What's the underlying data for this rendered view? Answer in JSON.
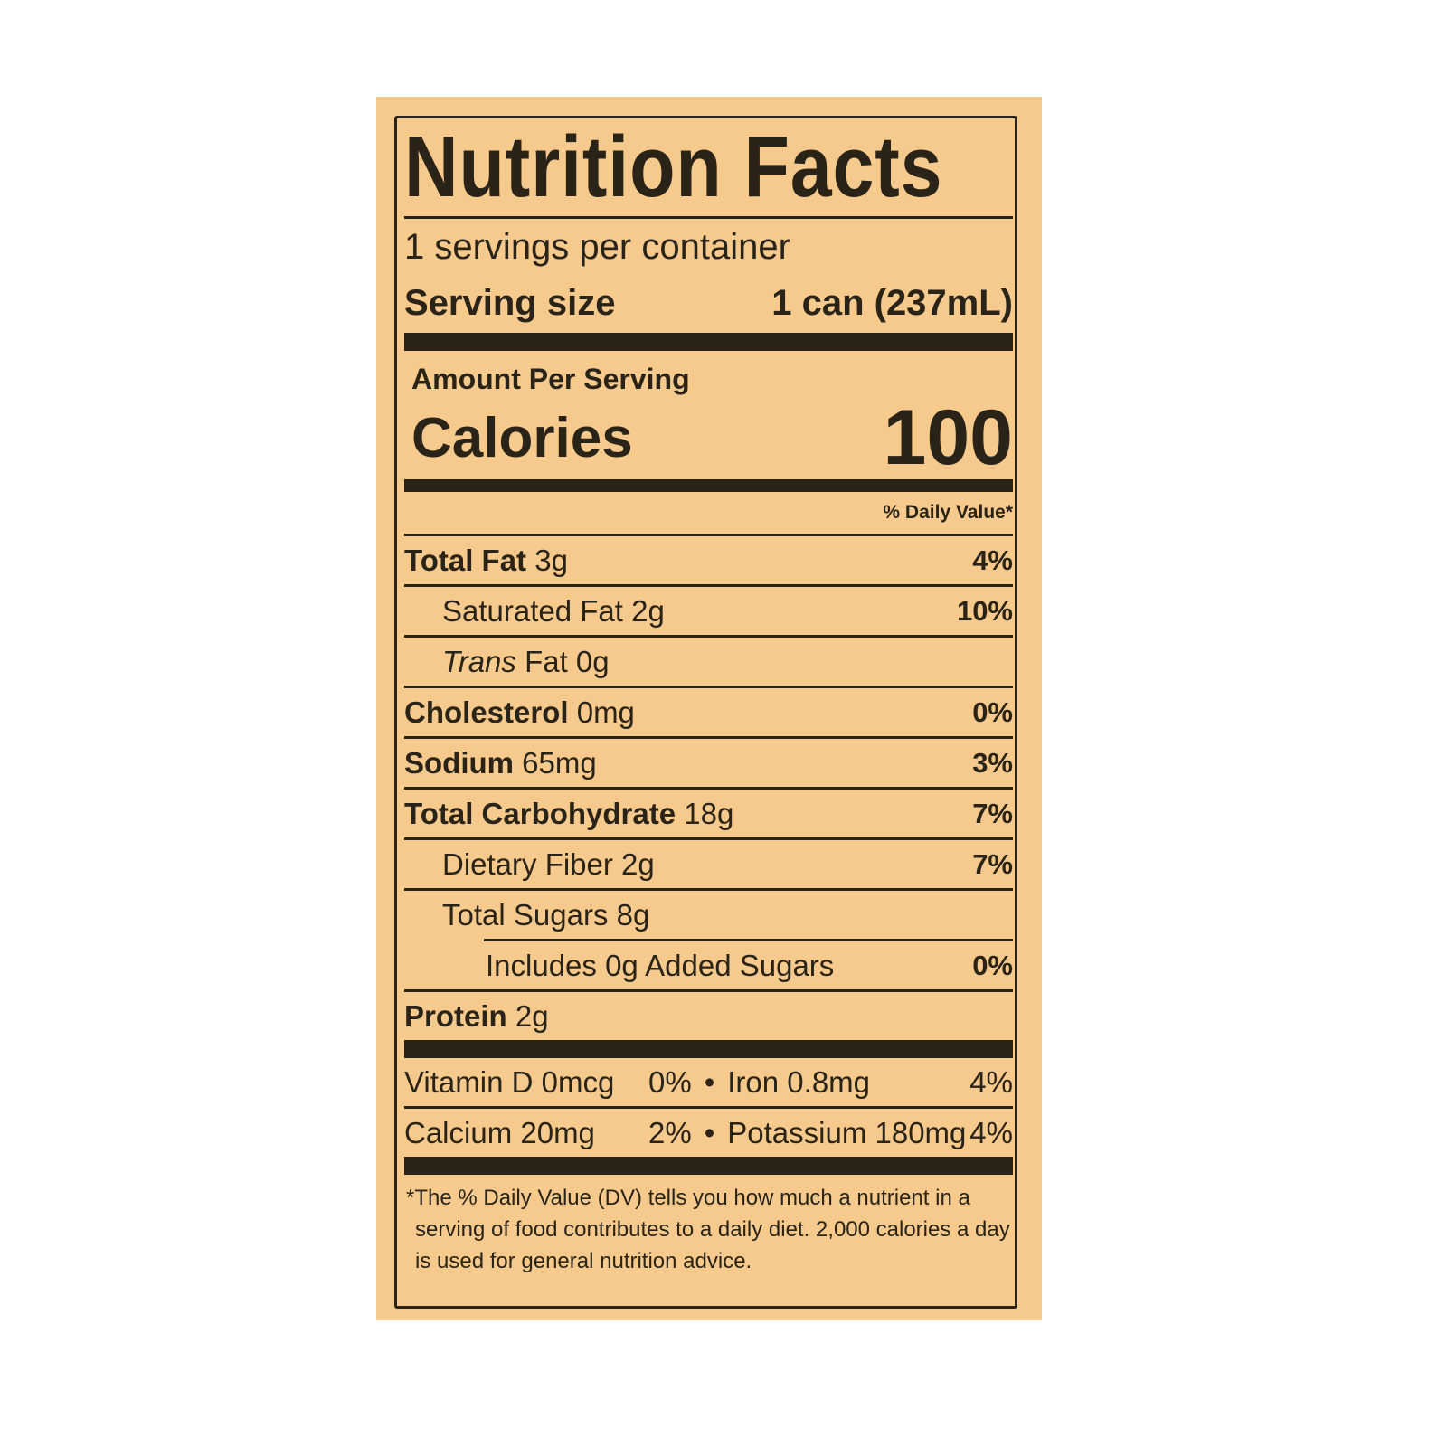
{
  "title": "Nutrition Facts",
  "servings_per_container": "1 servings per container",
  "serving_size": {
    "label": "Serving size",
    "value": "1 can (237mL)"
  },
  "amount_per_serving": "Amount Per Serving",
  "calories": {
    "label": "Calories",
    "value": "100"
  },
  "daily_value_header": "% Daily Value*",
  "nutrients": [
    {
      "name": "Total Fat",
      "amount": "3g",
      "dv": "4%"
    },
    {
      "name": "Saturated Fat 2g",
      "amount": "",
      "dv": "10%"
    },
    {
      "name_italic": "Trans",
      "name": " Fat 0g",
      "dv": ""
    },
    {
      "name": "Cholesterol",
      "amount": "0mg",
      "dv": "0%"
    },
    {
      "name": "Sodium",
      "amount": "65mg",
      "dv": "3%"
    },
    {
      "name": "Total Carbohydrate",
      "amount": "18g",
      "dv": "7%"
    },
    {
      "name": "Dietary Fiber 2g",
      "dv": "7%"
    },
    {
      "name": "Total Sugars 8g",
      "dv": ""
    },
    {
      "name": "Includes 0g Added Sugars",
      "dv": "0%"
    },
    {
      "name": "Protein",
      "amount": "2g",
      "dv": ""
    }
  ],
  "vitamins": [
    {
      "left": "Vitamin D 0mcg",
      "left_dv": "0%",
      "bullet": "•",
      "right": "Iron 0.8mg",
      "right_dv": "4%"
    },
    {
      "left": "Calcium 20mg",
      "left_dv": "2%",
      "bullet": "•",
      "right": "Potassium 180mg",
      "right_dv": "4%"
    }
  ],
  "footnote": "*The % Daily Value (DV) tells you how much a nutrient in a serving of food contributes to a daily diet. 2,000 calories a day is used for general nutrition advice.",
  "colors": {
    "background": "#f6c98c",
    "ink": "#2a2418"
  }
}
